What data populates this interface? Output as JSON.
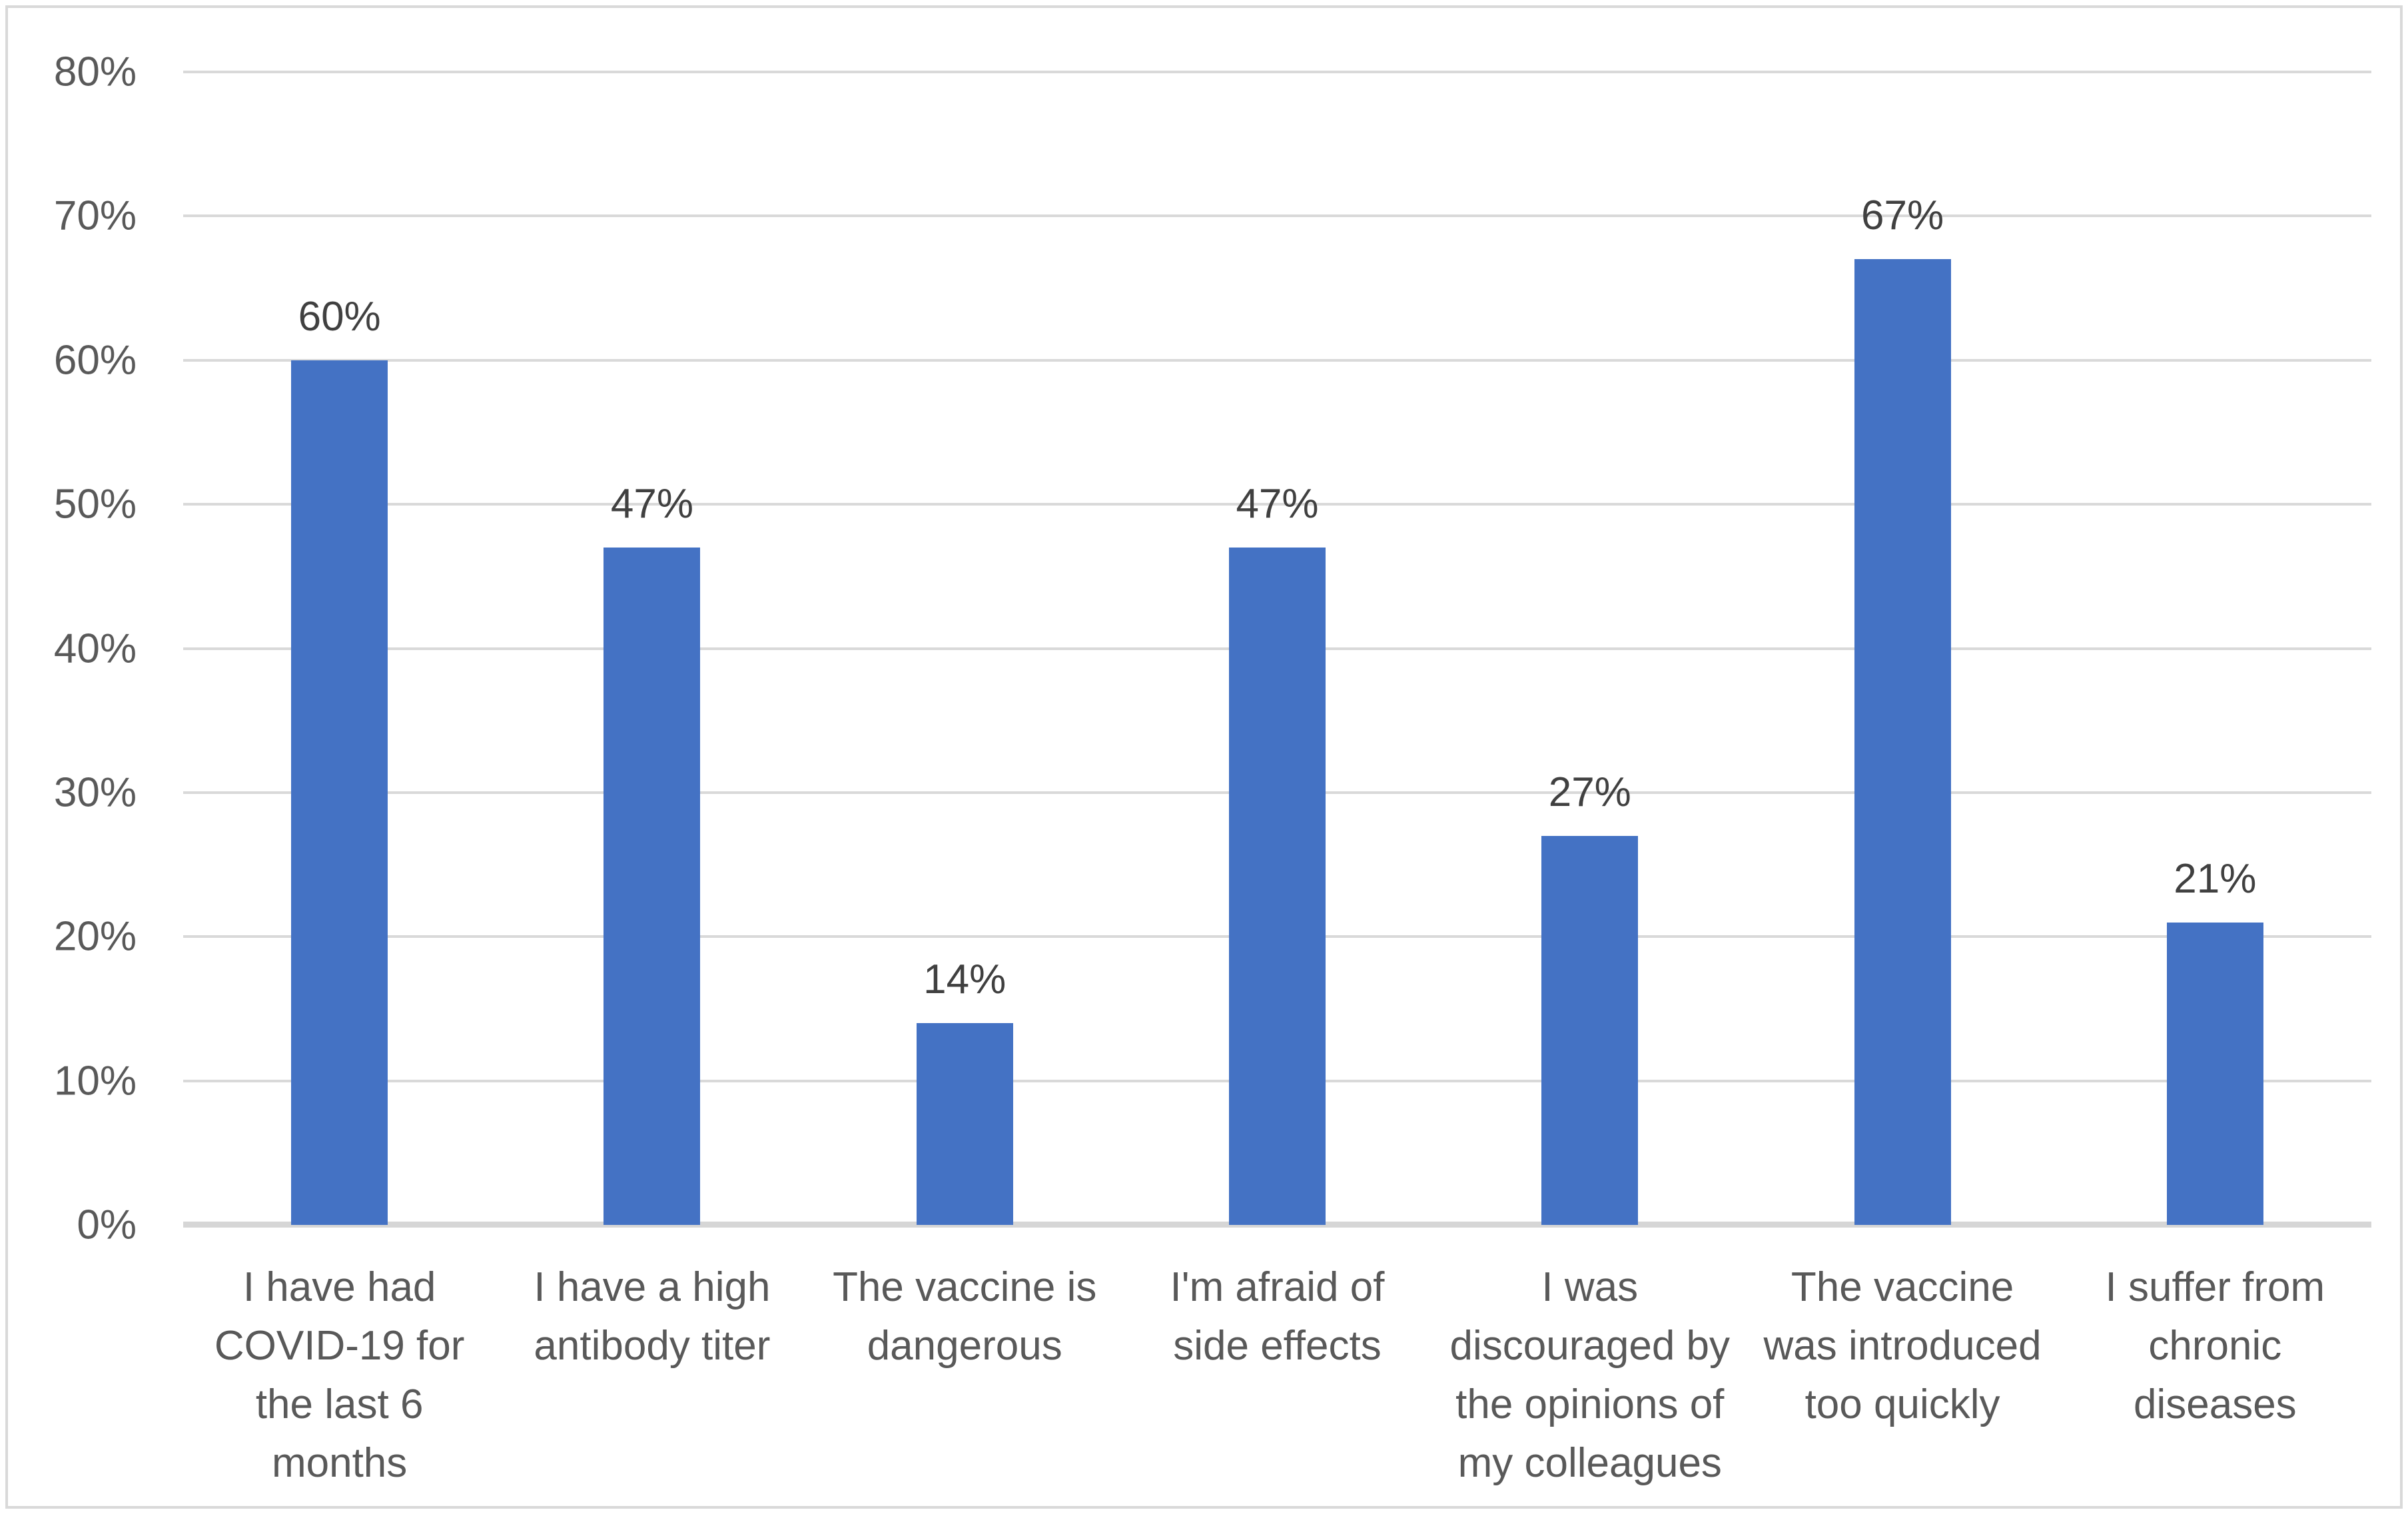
{
  "chart_data": {
    "type": "bar",
    "title": "",
    "xlabel": "",
    "ylabel": "",
    "categories": [
      "I have had COVID-19 for the last 6 months",
      "I have a high antibody titer",
      "The vaccine is dangerous",
      "I'm afraid of side effects",
      "I was discouraged by the opinions of my colleagues",
      "The vaccine was introduced too quickly",
      "I suffer from chronic diseases"
    ],
    "category_lines": [
      [
        "I have had",
        "COVID-19 for",
        "the last 6",
        "months"
      ],
      [
        "I have a high",
        "antibody titer"
      ],
      [
        "The vaccine is",
        "dangerous"
      ],
      [
        "I'm afraid of",
        "side effects"
      ],
      [
        "I was",
        "discouraged by",
        "the opinions of",
        "my colleagues"
      ],
      [
        "The vaccine",
        "was introduced",
        "too quickly"
      ],
      [
        "I suffer from",
        "chronic",
        "diseases"
      ]
    ],
    "values": [
      60,
      47,
      14,
      47,
      27,
      67,
      21
    ],
    "value_labels": [
      "60%",
      "47%",
      "14%",
      "47%",
      "27%",
      "67%",
      "21%"
    ],
    "ylim": [
      0,
      80
    ],
    "ytick_step": 10,
    "ytick_labels": [
      "0%",
      "10%",
      "20%",
      "30%",
      "40%",
      "50%",
      "60%",
      "70%",
      "80%"
    ],
    "grid": true,
    "legend": false,
    "colors": {
      "bar": "#4472C4",
      "gridline": "#D9D9D9",
      "axis_line": "#D6D6D6",
      "tick_text": "#595959",
      "value_label_text": "#404040",
      "category_text": "#595959",
      "frame_border": "#D9D9D9",
      "background": "#FFFFFF"
    }
  }
}
